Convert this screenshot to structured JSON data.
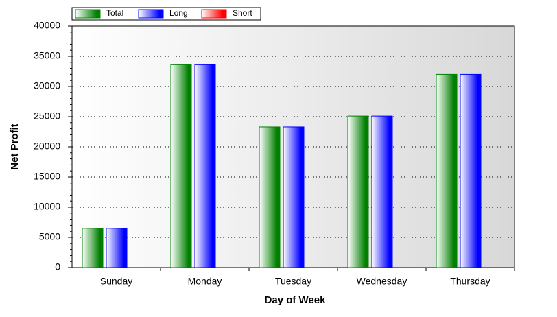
{
  "chart_data": {
    "type": "bar",
    "x_label": "Day of Week",
    "y_label": "Net Profit",
    "categories": [
      "Sunday",
      "Monday",
      "Tuesday",
      "Wednesday",
      "Thursday"
    ],
    "series": [
      {
        "name": "Total",
        "color": "#008000",
        "values": [
          6500,
          33600,
          23300,
          25100,
          32000
        ]
      },
      {
        "name": "Long",
        "color": "#0000ff",
        "values": [
          6500,
          33600,
          23300,
          25100,
          32000
        ]
      },
      {
        "name": "Short",
        "color": "#ff0000",
        "values": [
          0,
          0,
          0,
          0,
          0
        ]
      }
    ],
    "ylim": [
      0,
      40000
    ],
    "yticks": [
      0,
      5000,
      10000,
      15000,
      20000,
      25000,
      30000,
      35000,
      40000
    ],
    "grid": true,
    "legend": "top-left"
  }
}
